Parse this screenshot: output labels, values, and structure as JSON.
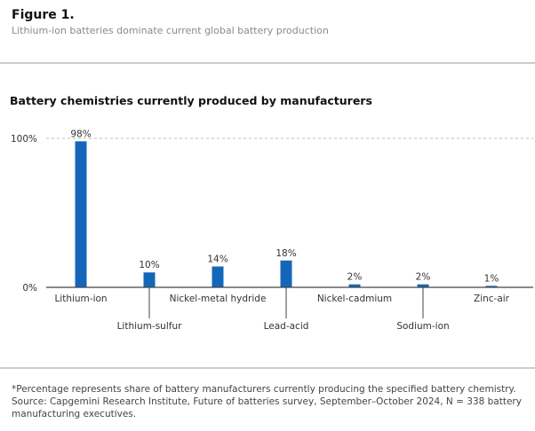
{
  "figure_label": "Figure 1.",
  "figure_subtitle": "Lithium-ion batteries dominate current global battery production",
  "chart_data": {
    "type": "bar",
    "title": "Battery chemistries currently produced by manufacturers",
    "categories": [
      "Lithium-ion",
      "Lithium-sulfur",
      "Nickel-metal hydride",
      "Lead-acid",
      "Nickel-cadmium",
      "Sodium-ion",
      "Zinc-air"
    ],
    "values": [
      98,
      10,
      14,
      18,
      2,
      2,
      1
    ],
    "data_labels": [
      "98%",
      "10%",
      "14%",
      "18%",
      "2%",
      "2%",
      "1%"
    ],
    "y_ticks": [
      "0%",
      "100%"
    ],
    "ylim": [
      0,
      100
    ],
    "xlabel": "",
    "ylabel": "",
    "bar_color": "#1467b8"
  },
  "footnote": [
    "*Percentage represents share of battery manufacturers currently producing the specified battery chemistry.",
    "Source: Capgemini Research Institute, Future of batteries survey, September–October 2024, N = 338 battery manufacturing executives."
  ]
}
